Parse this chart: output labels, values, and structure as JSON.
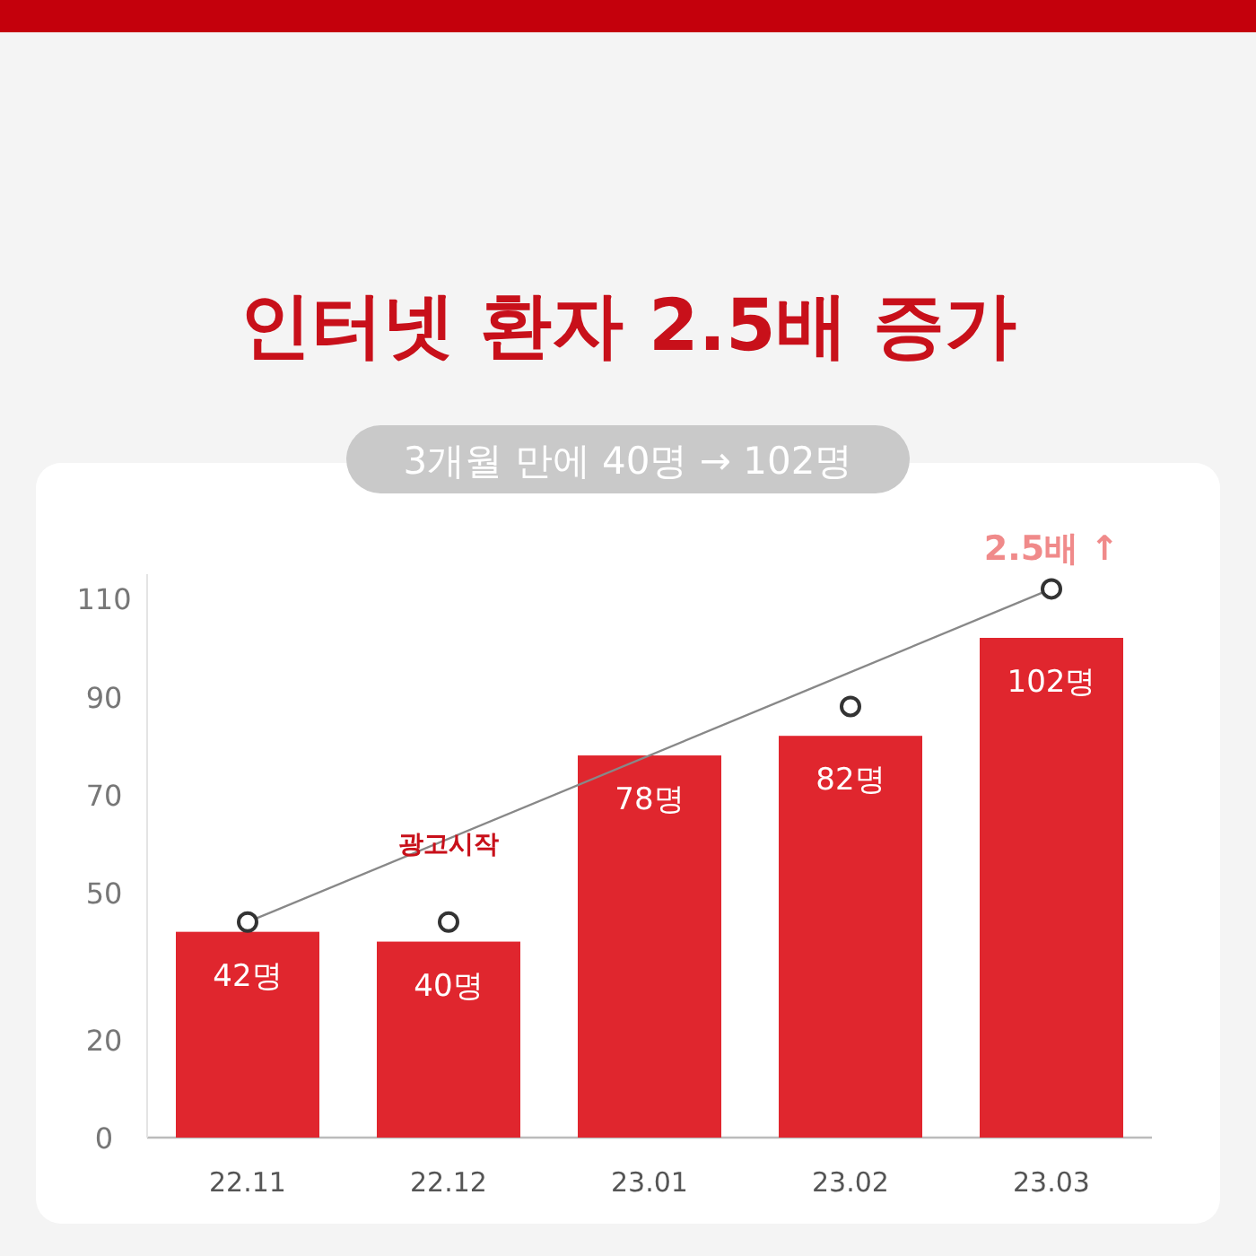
{
  "chart_data": {
    "type": "bar",
    "title": "인터넷 환자 2.5배 증가",
    "subtitle": "3개월 만에 40명 → 102명",
    "categories": [
      "22.11",
      "22.12",
      "23.01",
      "23.02",
      "23.03"
    ],
    "series": [
      {
        "color": "#e0262e",
        "values": [
          42,
          40,
          78,
          82,
          102
        ]
      },
      {
        "type": "scatter",
        "color": "#333333",
        "marker": "circle",
        "values": [
          44,
          44,
          null,
          88,
          112
        ]
      },
      {
        "type": "line",
        "color": "#888888",
        "x": [
          "22.11",
          "23.03"
        ],
        "values": [
          44,
          112
        ]
      }
    ],
    "value_labels": [
      "42명",
      "40명",
      "78명",
      "82명",
      "102명"
    ],
    "ylim": [
      0,
      115
    ],
    "yticks": [
      0,
      20,
      50,
      70,
      90,
      110
    ],
    "grid": false,
    "annotations": [
      "광고시작",
      "2.5배 ↑"
    ]
  }
}
